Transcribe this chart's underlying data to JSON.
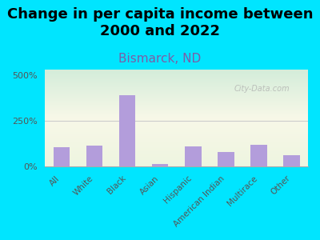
{
  "title": "Change in per capita income between\n2000 and 2022",
  "subtitle": "Bismarck, ND",
  "categories": [
    "All",
    "White",
    "Black",
    "Asian",
    "Hispanic",
    "American Indian",
    "Multirace",
    "Other"
  ],
  "values": [
    105,
    115,
    390,
    12,
    108,
    80,
    118,
    60
  ],
  "bar_color": "#b39ddb",
  "background_outer": "#00e5ff",
  "title_fontsize": 13,
  "subtitle_fontsize": 11,
  "subtitle_color": "#7b5ea7",
  "title_color": "#000000",
  "ylabel_ticks": [
    "0%",
    "250%",
    "500%"
  ],
  "yticks": [
    0,
    250,
    500
  ],
  "ylim": [
    0,
    530
  ],
  "watermark": "City-Data.com"
}
